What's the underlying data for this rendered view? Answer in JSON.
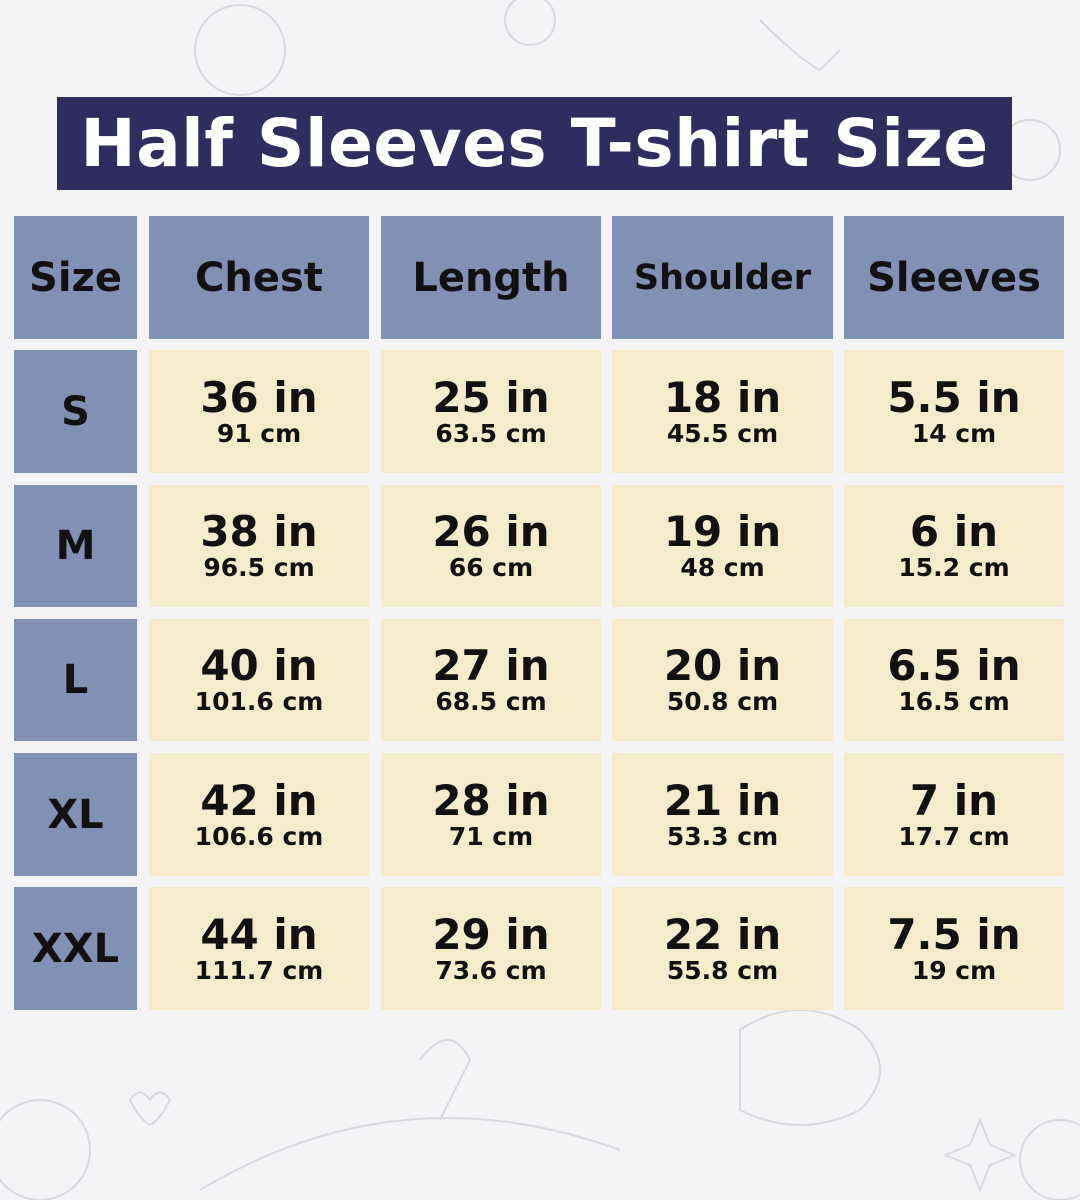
{
  "title": "Half Sleeves T-shirt Size",
  "colors": {
    "title_bg": "#2f2d5f",
    "header_bg": "#8191b5",
    "cell_bg": "#f6ebca",
    "background": "#f4f4f6"
  },
  "chart_data": {
    "type": "table",
    "columns": [
      "Size",
      "Chest",
      "Length",
      "Shoulder",
      "Sleeves"
    ],
    "rows": [
      {
        "size": "S",
        "values": [
          [
            "36 in",
            "91 cm"
          ],
          [
            "25 in",
            "63.5 cm"
          ],
          [
            "18 in",
            "45.5 cm"
          ],
          [
            "5.5 in",
            "14 cm"
          ]
        ]
      },
      {
        "size": "M",
        "values": [
          [
            "38 in",
            "96.5 cm"
          ],
          [
            "26 in",
            "66 cm"
          ],
          [
            "19 in",
            "48 cm"
          ],
          [
            "6 in",
            "15.2 cm"
          ]
        ]
      },
      {
        "size": "L",
        "values": [
          [
            "40 in",
            "101.6 cm"
          ],
          [
            "27 in",
            "68.5 cm"
          ],
          [
            "20 in",
            "50.8 cm"
          ],
          [
            "6.5 in",
            "16.5 cm"
          ]
        ]
      },
      {
        "size": "XL",
        "values": [
          [
            "42 in",
            "106.6 cm"
          ],
          [
            "28 in",
            "71 cm"
          ],
          [
            "21 in",
            "53.3 cm"
          ],
          [
            "7 in",
            "17.7 cm"
          ]
        ]
      },
      {
        "size": "XXL",
        "values": [
          [
            "44 in",
            "111.7 cm"
          ],
          [
            "29 in",
            "73.6 cm"
          ],
          [
            "22 in",
            "55.8 cm"
          ],
          [
            "7.5 in",
            "19 cm"
          ]
        ]
      }
    ]
  }
}
